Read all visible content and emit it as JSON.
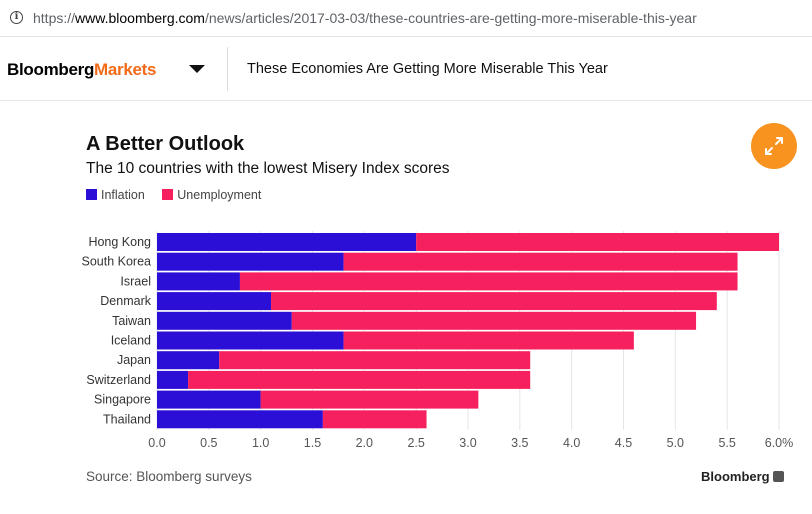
{
  "browser": {
    "url_scheme": "https://",
    "url_domain": "www.bloomberg.com",
    "url_path": "/news/articles/2017-03-03/these-countries-are-getting-more-miserable-this-year"
  },
  "header": {
    "logo_bloomberg": "Bloomberg",
    "logo_section": "Markets",
    "article_title": "These Economies Are Getting More Miserable This Year"
  },
  "footer": {
    "source": "Source: Bloomberg surveys",
    "brand": "Bloomberg"
  },
  "colors": {
    "inflation": "#2b0fd6",
    "unemployment": "#f7205f",
    "accent": "#f7931e",
    "logo_orange": "#f26b18"
  },
  "chart_data": {
    "type": "bar",
    "orientation": "horizontal",
    "stacked": true,
    "title": "A Better Outlook",
    "subtitle": "The 10 countries with the lowest Misery Index scores",
    "categories": [
      "Hong Kong",
      "South Korea",
      "Israel",
      "Denmark",
      "Taiwan",
      "Iceland",
      "Japan",
      "Switzerland",
      "Singapore",
      "Thailand"
    ],
    "series": [
      {
        "name": "Inflation",
        "values": [
          2.5,
          1.8,
          0.8,
          1.1,
          1.3,
          1.8,
          0.6,
          0.3,
          1.0,
          1.6
        ]
      },
      {
        "name": "Unemployment",
        "values": [
          3.5,
          3.8,
          4.8,
          4.3,
          3.9,
          2.8,
          3.0,
          3.3,
          2.1,
          1.0
        ]
      }
    ],
    "xlim": [
      0,
      6.0
    ],
    "x_ticks": [
      "0.0",
      "0.5",
      "1.0",
      "1.5",
      "2.0",
      "2.5",
      "3.0",
      "3.5",
      "4.0",
      "4.5",
      "5.0",
      "5.5",
      "6.0%"
    ],
    "legend_position": "top-left",
    "grid": true
  }
}
